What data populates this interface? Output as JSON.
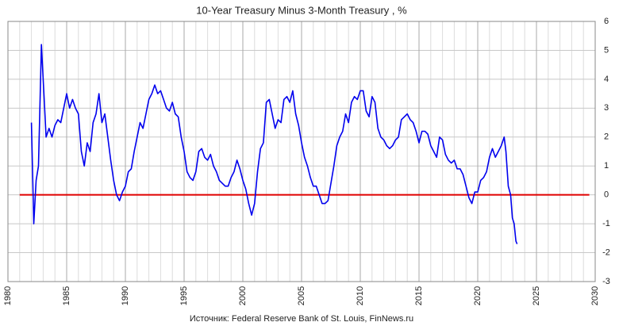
{
  "chart_data": {
    "type": "line",
    "title": "10-Year Treasury Minus 3-Month Treasury , %",
    "source": "Источник: Federal Reserve Bank of St. Louis, FinNews.ru",
    "x": [
      1982.0,
      1982.2,
      1982.4,
      1982.6,
      1982.75,
      1982.85,
      1983.0,
      1983.25,
      1983.5,
      1983.75,
      1984.0,
      1984.25,
      1984.5,
      1984.75,
      1985.0,
      1985.25,
      1985.5,
      1985.75,
      1986.0,
      1986.25,
      1986.5,
      1986.75,
      1987.0,
      1987.25,
      1987.5,
      1987.75,
      1988.0,
      1988.25,
      1988.5,
      1988.75,
      1989.0,
      1989.25,
      1989.5,
      1989.75,
      1990.0,
      1990.25,
      1990.5,
      1990.75,
      1991.0,
      1991.25,
      1991.5,
      1991.75,
      1992.0,
      1992.25,
      1992.5,
      1992.75,
      1993.0,
      1993.25,
      1993.5,
      1993.75,
      1994.0,
      1994.25,
      1994.5,
      1994.75,
      1995.0,
      1995.25,
      1995.5,
      1995.75,
      1996.0,
      1996.25,
      1996.5,
      1996.75,
      1997.0,
      1997.25,
      1997.5,
      1997.75,
      1998.0,
      1998.25,
      1998.5,
      1998.75,
      1999.0,
      1999.25,
      1999.5,
      1999.75,
      2000.0,
      2000.25,
      2000.5,
      2000.75,
      2001.0,
      2001.25,
      2001.5,
      2001.75,
      2002.0,
      2002.25,
      2002.5,
      2002.75,
      2003.0,
      2003.25,
      2003.5,
      2003.75,
      2004.0,
      2004.25,
      2004.5,
      2004.75,
      2005.0,
      2005.25,
      2005.5,
      2005.75,
      2006.0,
      2006.25,
      2006.5,
      2006.75,
      2007.0,
      2007.25,
      2007.5,
      2007.75,
      2008.0,
      2008.25,
      2008.5,
      2008.75,
      2009.0,
      2009.25,
      2009.5,
      2009.75,
      2010.0,
      2010.25,
      2010.5,
      2010.75,
      2011.0,
      2011.25,
      2011.5,
      2011.75,
      2012.0,
      2012.25,
      2012.5,
      2012.75,
      2013.0,
      2013.25,
      2013.5,
      2013.75,
      2014.0,
      2014.25,
      2014.5,
      2014.75,
      2015.0,
      2015.25,
      2015.5,
      2015.75,
      2016.0,
      2016.25,
      2016.5,
      2016.75,
      2017.0,
      2017.25,
      2017.5,
      2017.75,
      2018.0,
      2018.25,
      2018.5,
      2018.75,
      2019.0,
      2019.25,
      2019.5,
      2019.75,
      2020.0,
      2020.25,
      2020.5,
      2020.75,
      2021.0,
      2021.25,
      2021.5,
      2021.75,
      2022.0,
      2022.25,
      2022.4,
      2022.6,
      2022.8,
      2022.95,
      2023.1,
      2023.25,
      2023.35
    ],
    "series": [
      {
        "color": "#0000ee",
        "values": [
          2.5,
          -1.0,
          0.5,
          1.0,
          3.5,
          5.2,
          4.0,
          2.0,
          2.3,
          2.0,
          2.4,
          2.6,
          2.5,
          3.0,
          3.5,
          3.0,
          3.3,
          3.0,
          2.8,
          1.5,
          1.0,
          1.8,
          1.5,
          2.5,
          2.8,
          3.5,
          2.5,
          2.8,
          2.0,
          1.2,
          0.5,
          0.0,
          -0.2,
          0.1,
          0.3,
          0.8,
          0.9,
          1.5,
          2.0,
          2.5,
          2.3,
          2.8,
          3.3,
          3.5,
          3.8,
          3.5,
          3.6,
          3.3,
          3.0,
          2.9,
          3.2,
          2.8,
          2.7,
          2.0,
          1.5,
          0.8,
          0.6,
          0.5,
          0.8,
          1.5,
          1.6,
          1.3,
          1.2,
          1.4,
          1.0,
          0.8,
          0.5,
          0.4,
          0.3,
          0.3,
          0.6,
          0.8,
          1.2,
          0.9,
          0.5,
          0.2,
          -0.3,
          -0.7,
          -0.3,
          0.8,
          1.6,
          1.8,
          3.2,
          3.3,
          2.8,
          2.3,
          2.6,
          2.5,
          3.3,
          3.4,
          3.2,
          3.6,
          2.8,
          2.4,
          1.8,
          1.3,
          1.0,
          0.6,
          0.3,
          0.3,
          0.0,
          -0.3,
          -0.3,
          -0.2,
          0.4,
          1.0,
          1.7,
          2.0,
          2.2,
          2.8,
          2.5,
          3.2,
          3.4,
          3.3,
          3.6,
          3.6,
          2.9,
          2.7,
          3.4,
          3.2,
          2.3,
          2.0,
          1.9,
          1.7,
          1.6,
          1.7,
          1.9,
          2.0,
          2.6,
          2.7,
          2.8,
          2.6,
          2.5,
          2.2,
          1.8,
          2.2,
          2.2,
          2.1,
          1.7,
          1.5,
          1.3,
          2.0,
          1.9,
          1.4,
          1.2,
          1.1,
          1.2,
          0.9,
          0.9,
          0.7,
          0.3,
          -0.1,
          -0.3,
          0.1,
          0.1,
          0.5,
          0.6,
          0.8,
          1.3,
          1.6,
          1.3,
          1.5,
          1.7,
          2.0,
          1.5,
          0.3,
          0.0,
          -0.8,
          -1.0,
          -1.6,
          -1.7
        ]
      }
    ],
    "reference_line": {
      "value": 0,
      "color": "#e00000",
      "x": [
        1981,
        2029.5
      ]
    },
    "xlim": [
      1980,
      2030
    ],
    "xticks": [
      1980,
      1985,
      1990,
      1995,
      2000,
      2005,
      2010,
      2015,
      2020,
      2025,
      2030
    ],
    "ylim": [
      -3,
      6
    ],
    "yticks": [
      -3,
      -2,
      -1,
      0,
      1,
      2,
      3,
      4,
      5,
      6
    ],
    "grid": true
  }
}
